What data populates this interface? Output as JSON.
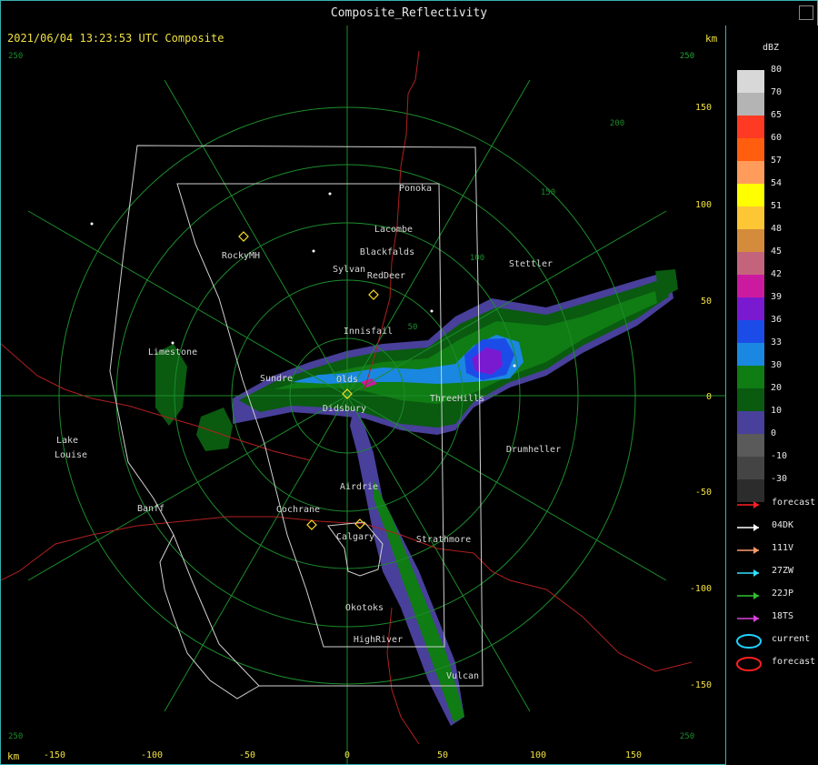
{
  "window": {
    "title": "Composite_Reflectivity"
  },
  "map": {
    "timestamp": "2021/06/04 13:23:53 UTC Composite",
    "unit_top": "km",
    "unit_bottom": "km",
    "x_ticks": [
      "-150",
      "-100",
      "-50",
      "0",
      "50",
      "100",
      "150"
    ],
    "y_ticks": [
      "150",
      "100",
      "50",
      "0",
      "-50",
      "-100",
      "-150"
    ],
    "range_ring_labels": [
      "50",
      "100",
      "150",
      "200",
      "250"
    ],
    "corner_labels": [
      "250",
      "250",
      "250",
      "250"
    ],
    "places": [
      "Ponoka",
      "Lacombe",
      "Blackfalds",
      "Sylvan",
      "RedDeer",
      "RockyMH",
      "Stettler",
      "Innisfail",
      "Limestone",
      "Sundre",
      "Olds",
      "Didsbury",
      "ThreeHills",
      "Drumheller",
      "Lake",
      "Louise",
      "Banff",
      "Airdrie",
      "Cochrane",
      "Calgary",
      "Strathmore",
      "Okotoks",
      "HighRiver",
      "Vulcan"
    ]
  },
  "legend": {
    "title": "dBZ",
    "scale": [
      {
        "label": "80",
        "color": "#d8d8d8"
      },
      {
        "label": "70",
        "color": "#b4b4b4"
      },
      {
        "label": "65",
        "color": "#ff3a24"
      },
      {
        "label": "60",
        "color": "#ff5e0e"
      },
      {
        "label": "57",
        "color": "#ff9c5c"
      },
      {
        "label": "54",
        "color": "#ffff00"
      },
      {
        "label": "51",
        "color": "#fcc634"
      },
      {
        "label": "48",
        "color": "#d48c3c"
      },
      {
        "label": "45",
        "color": "#c4647c"
      },
      {
        "label": "42",
        "color": "#cc1aa0"
      },
      {
        "label": "39",
        "color": "#7a1ad0"
      },
      {
        "label": "36",
        "color": "#1c4ce8"
      },
      {
        "label": "33",
        "color": "#1a88e0"
      },
      {
        "label": "30",
        "color": "#107c14"
      },
      {
        "label": "20",
        "color": "#0a5a10"
      },
      {
        "label": "10",
        "color": "#48409a"
      },
      {
        "label": "0",
        "color": "#5a5a5a"
      },
      {
        "label": "-10",
        "color": "#444444"
      },
      {
        "label": "-30",
        "color": "#2c2c2c"
      }
    ],
    "entries": [
      {
        "label": "forecast",
        "color": "#ff2020",
        "kind": "arrow"
      },
      {
        "label": "04DK",
        "color": "#ffffff",
        "kind": "arrow"
      },
      {
        "label": "111V",
        "color": "#ff9a6a",
        "kind": "arrow"
      },
      {
        "label": "27ZW",
        "color": "#30e0ff",
        "kind": "arrow"
      },
      {
        "label": "22JP",
        "color": "#30c030",
        "kind": "arrow"
      },
      {
        "label": "18TS",
        "color": "#e040e0",
        "kind": "arrow"
      },
      {
        "label": "current",
        "color": "#20d0ff",
        "kind": "ellipse"
      },
      {
        "label": "forecast",
        "color": "#ff2020",
        "kind": "ellipse"
      }
    ]
  }
}
